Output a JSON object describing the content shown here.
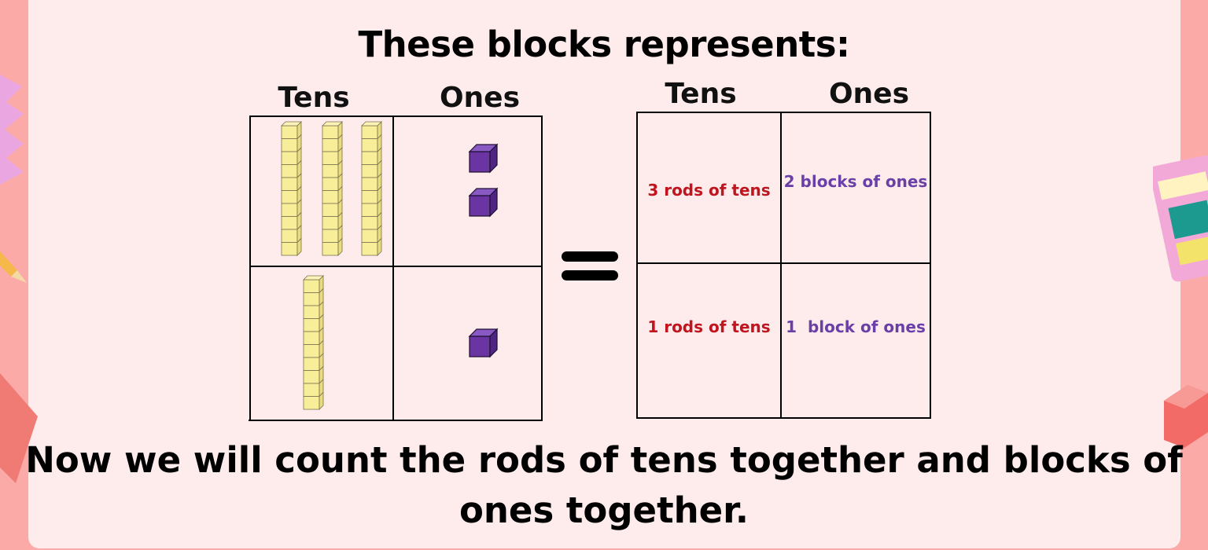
{
  "title": "These blocks represents:",
  "left_table": {
    "headers": [
      "Tens",
      "Ones"
    ],
    "rows": [
      {
        "tens_rods": 3,
        "ones_cubes": 2
      },
      {
        "tens_rods": 1,
        "ones_cubes": 1
      }
    ]
  },
  "right_table": {
    "headers": [
      "Tens",
      "Ones"
    ],
    "rows": [
      {
        "tens": "3 rods of tens",
        "ones": "2 blocks of ones"
      },
      {
        "tens": "1 rods of tens",
        "ones": "1  block of ones"
      }
    ]
  },
  "footer_text": "Now we will count the rods of tens together and blocks of ones together.",
  "colors": {
    "background": "#fcaaa7",
    "card": "#fdeceb",
    "tens_text": "#c0141e",
    "ones_text": "#6a3fa8",
    "rod_fill": "#f8ee9a",
    "cube_fill": "#6a35a3"
  }
}
